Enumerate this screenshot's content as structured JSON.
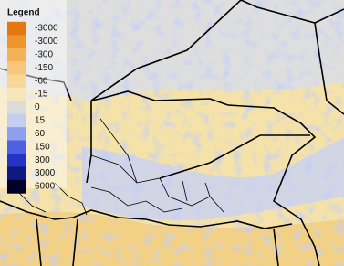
{
  "legend": {
    "title": "Legend",
    "labels": [
      "-3000",
      "-3000",
      "-300",
      "-150",
      "-60",
      "-15",
      "0",
      "15",
      "60",
      "150",
      "300",
      "3000",
      "6000"
    ],
    "colors": [
      "#e4780e",
      "#ee9530",
      "#f3b158",
      "#f6c67c",
      "#f8d898",
      "#f5e6bc",
      "#dcdcdc",
      "#c4cdf2",
      "#8f9ff0",
      "#4f60e2",
      "#2334c2",
      "#0f1a80",
      "#000028"
    ]
  }
}
